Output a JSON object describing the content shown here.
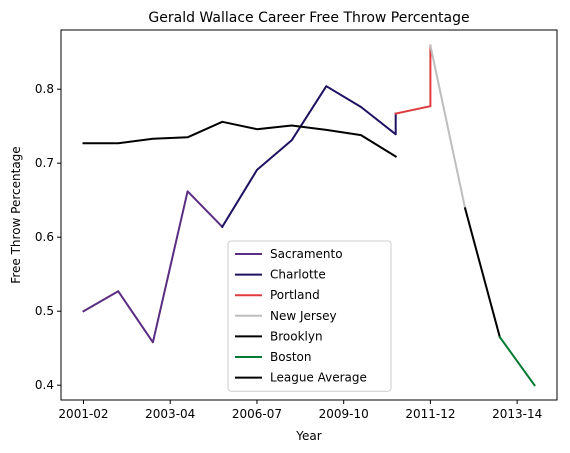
{
  "chart_data": {
    "type": "line",
    "title": "Gerald Wallace Career Free Throw Percentage",
    "xlabel": "Year",
    "ylabel": "Free Throw Percentage",
    "xlim": [
      0,
      13
    ],
    "ylim": [
      0.38,
      0.88
    ],
    "x_ticks": [
      {
        "x": 0,
        "label": "2001-02"
      },
      {
        "x": 2.5,
        "label": "2003-04"
      },
      {
        "x": 5,
        "label": "2006-07"
      },
      {
        "x": 7.5,
        "label": "2009-10"
      },
      {
        "x": 10,
        "label": "2011-12"
      },
      {
        "x": 12.5,
        "label": "2013-14"
      }
    ],
    "y_ticks": [
      0.4,
      0.5,
      0.6,
      0.7,
      0.8
    ],
    "legend_position": "lower-center",
    "series": [
      {
        "name": "Sacramento",
        "color": "#5a2d82",
        "x": [
          0,
          1,
          2,
          3,
          4
        ],
        "y": [
          0.5,
          0.527,
          0.458,
          0.662,
          0.614
        ]
      },
      {
        "name": "Charlotte",
        "color": "#1d1160",
        "x": [
          4,
          5,
          6,
          7,
          8,
          9,
          9
        ],
        "y": [
          0.614,
          0.691,
          0.731,
          0.804,
          0.776,
          0.739,
          0.767
        ]
      },
      {
        "name": "Portland",
        "color": "#e03a3e",
        "x": [
          9,
          10,
          10
        ],
        "y": [
          0.767,
          0.777,
          0.859
        ]
      },
      {
        "name": "New Jersey",
        "color": "#bebebe",
        "x": [
          10,
          11
        ],
        "y": [
          0.859,
          0.639
        ]
      },
      {
        "name": "Brooklyn",
        "color": "#000000",
        "x": [
          11,
          12
        ],
        "y": [
          0.639,
          0.465
        ]
      },
      {
        "name": "Boston",
        "color": "#007a33",
        "x": [
          12,
          13
        ],
        "y": [
          0.465,
          0.4
        ]
      },
      {
        "name": "League Average",
        "color": "#000000",
        "x": [
          0,
          1,
          2,
          3,
          4,
          5,
          6,
          7,
          8,
          9
        ],
        "y": [
          0.727,
          0.727,
          0.733,
          0.735,
          0.756,
          0.746,
          0.751,
          0.745,
          0.738,
          0.709
        ]
      }
    ]
  }
}
